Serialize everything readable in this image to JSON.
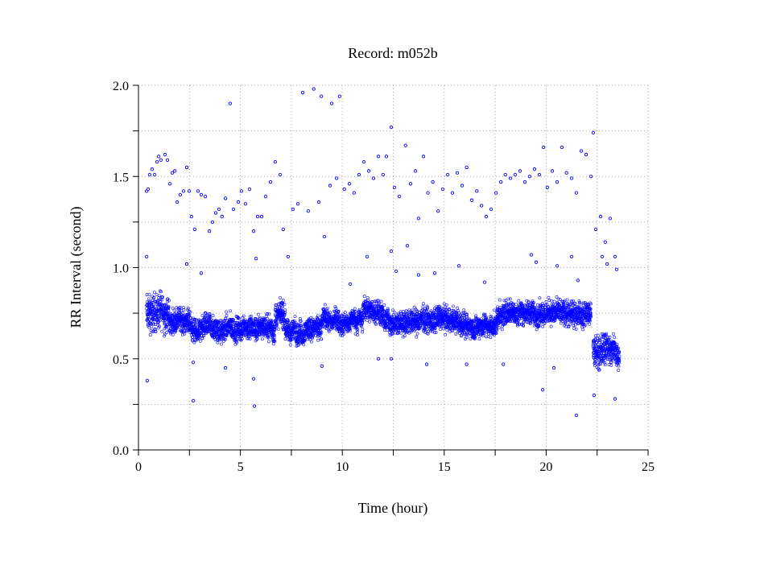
{
  "chart_data": {
    "type": "scatter",
    "title": "Record:  m052b",
    "xlabel": "Time (hour)",
    "ylabel": "RR Interval (second)",
    "xlim": [
      0,
      25
    ],
    "ylim": [
      0,
      2.0
    ],
    "xticks": [
      "0",
      "5",
      "10",
      "15",
      "20",
      "25"
    ],
    "yticks": [
      "0.0",
      "0.5",
      "1.0",
      "1.5",
      "2.0"
    ],
    "grid": true,
    "marker_color": "#0000ff",
    "dense_band": [
      {
        "x_start": 0.4,
        "x_end": 1.5,
        "low": 0.58,
        "high": 0.9,
        "center": 0.75
      },
      {
        "x_start": 1.5,
        "x_end": 2.6,
        "low": 0.6,
        "high": 0.8,
        "center": 0.7
      },
      {
        "x_start": 2.6,
        "x_end": 3.0,
        "low": 0.55,
        "high": 0.75,
        "center": 0.65
      },
      {
        "x_start": 3.0,
        "x_end": 6.7,
        "low": 0.57,
        "high": 0.78,
        "center": 0.67
      },
      {
        "x_start": 6.7,
        "x_end": 7.2,
        "low": 0.62,
        "high": 0.85,
        "center": 0.73
      },
      {
        "x_start": 7.2,
        "x_end": 9.0,
        "low": 0.57,
        "high": 0.77,
        "center": 0.66
      },
      {
        "x_start": 9.0,
        "x_end": 11.0,
        "low": 0.62,
        "high": 0.8,
        "center": 0.71
      },
      {
        "x_start": 11.0,
        "x_end": 12.0,
        "low": 0.67,
        "high": 0.87,
        "center": 0.77
      },
      {
        "x_start": 12.0,
        "x_end": 16.0,
        "low": 0.62,
        "high": 0.83,
        "center": 0.71
      },
      {
        "x_start": 16.0,
        "x_end": 17.6,
        "low": 0.58,
        "high": 0.78,
        "center": 0.68
      },
      {
        "x_start": 17.6,
        "x_end": 22.2,
        "low": 0.65,
        "high": 0.86,
        "center": 0.75
      },
      {
        "x_start": 22.3,
        "x_end": 23.6,
        "low": 0.4,
        "high": 0.68,
        "center": 0.55
      }
    ],
    "outliers": [
      [
        0.4,
        1.42
      ],
      [
        0.47,
        1.43
      ],
      [
        0.55,
        1.51
      ],
      [
        0.67,
        1.54
      ],
      [
        0.79,
        1.51
      ],
      [
        0.91,
        1.58
      ],
      [
        0.99,
        1.61
      ],
      [
        1.1,
        1.59
      ],
      [
        1.3,
        1.62
      ],
      [
        1.42,
        1.59
      ],
      [
        1.54,
        1.46
      ],
      [
        1.66,
        1.52
      ],
      [
        1.78,
        1.53
      ],
      [
        1.9,
        1.36
      ],
      [
        2.05,
        1.4
      ],
      [
        2.21,
        1.42
      ],
      [
        2.37,
        1.55
      ],
      [
        2.49,
        1.42
      ],
      [
        2.6,
        1.28
      ],
      [
        2.76,
        1.21
      ],
      [
        2.92,
        1.42
      ],
      [
        3.08,
        1.4
      ],
      [
        3.28,
        1.39
      ],
      [
        3.48,
        1.2
      ],
      [
        3.63,
        1.25
      ],
      [
        3.79,
        1.3
      ],
      [
        3.95,
        1.32
      ],
      [
        4.1,
        1.28
      ],
      [
        4.27,
        1.38
      ],
      [
        4.5,
        1.9
      ],
      [
        4.66,
        1.32
      ],
      [
        4.9,
        1.36
      ],
      [
        5.05,
        1.42
      ],
      [
        5.25,
        1.35
      ],
      [
        5.45,
        1.43
      ],
      [
        5.65,
        1.2
      ],
      [
        5.85,
        1.28
      ],
      [
        6.04,
        1.28
      ],
      [
        6.24,
        1.39
      ],
      [
        6.48,
        1.47
      ],
      [
        6.71,
        1.58
      ],
      [
        6.95,
        1.51
      ],
      [
        7.1,
        1.21
      ],
      [
        7.34,
        1.06
      ],
      [
        7.58,
        1.32
      ],
      [
        7.82,
        1.35
      ],
      [
        8.06,
        1.96
      ],
      [
        8.33,
        1.31
      ],
      [
        8.6,
        1.98
      ],
      [
        8.85,
        1.36
      ],
      [
        8.97,
        1.94
      ],
      [
        9.12,
        1.17
      ],
      [
        9.4,
        1.45
      ],
      [
        9.48,
        1.9
      ],
      [
        9.72,
        1.49
      ],
      [
        9.87,
        1.94
      ],
      [
        10.1,
        1.43
      ],
      [
        10.35,
        1.46
      ],
      [
        10.58,
        1.41
      ],
      [
        10.82,
        1.51
      ],
      [
        11.06,
        1.58
      ],
      [
        11.3,
        1.53
      ],
      [
        11.53,
        1.49
      ],
      [
        11.77,
        1.61
      ],
      [
        12.0,
        1.51
      ],
      [
        12.16,
        1.61
      ],
      [
        12.4,
        1.77
      ],
      [
        12.56,
        1.44
      ],
      [
        12.8,
        1.39
      ],
      [
        13.1,
        1.67
      ],
      [
        13.35,
        1.46
      ],
      [
        13.59,
        1.53
      ],
      [
        13.74,
        1.27
      ],
      [
        13.98,
        1.61
      ],
      [
        14.2,
        1.41
      ],
      [
        14.44,
        1.47
      ],
      [
        14.7,
        1.31
      ],
      [
        14.93,
        1.43
      ],
      [
        15.17,
        1.51
      ],
      [
        15.4,
        1.41
      ],
      [
        15.64,
        1.52
      ],
      [
        15.88,
        1.45
      ],
      [
        16.1,
        1.55
      ],
      [
        16.35,
        1.37
      ],
      [
        16.6,
        1.42
      ],
      [
        16.83,
        1.34
      ],
      [
        17.06,
        1.28
      ],
      [
        17.3,
        1.32
      ],
      [
        17.54,
        1.41
      ],
      [
        17.78,
        1.47
      ],
      [
        18.0,
        1.51
      ],
      [
        18.25,
        1.49
      ],
      [
        18.48,
        1.51
      ],
      [
        18.72,
        1.53
      ],
      [
        18.96,
        1.47
      ],
      [
        19.19,
        1.5
      ],
      [
        19.43,
        1.54
      ],
      [
        19.67,
        1.51
      ],
      [
        19.87,
        1.66
      ],
      [
        20.06,
        1.44
      ],
      [
        20.3,
        1.53
      ],
      [
        20.54,
        1.47
      ],
      [
        20.77,
        1.66
      ],
      [
        21.0,
        1.52
      ],
      [
        21.25,
        1.49
      ],
      [
        21.48,
        1.41
      ],
      [
        21.72,
        1.64
      ],
      [
        21.96,
        1.62
      ],
      [
        22.2,
        1.5
      ],
      [
        22.31,
        1.74
      ],
      [
        22.43,
        1.21
      ],
      [
        22.67,
        1.28
      ],
      [
        22.9,
        1.14
      ],
      [
        23.14,
        1.27
      ],
      [
        23.38,
        1.06
      ],
      [
        0.4,
        1.06
      ],
      [
        2.37,
        1.02
      ],
      [
        3.08,
        0.97
      ],
      [
        5.77,
        1.05
      ],
      [
        10.39,
        0.91
      ],
      [
        11.22,
        1.06
      ],
      [
        12.4,
        1.09
      ],
      [
        12.64,
        0.98
      ],
      [
        13.19,
        1.12
      ],
      [
        13.74,
        0.96
      ],
      [
        14.53,
        0.97
      ],
      [
        15.72,
        1.01
      ],
      [
        16.98,
        0.92
      ],
      [
        19.27,
        1.07
      ],
      [
        19.51,
        1.03
      ],
      [
        20.54,
        1.01
      ],
      [
        21.25,
        1.06
      ],
      [
        21.56,
        0.93
      ],
      [
        22.75,
        1.06
      ],
      [
        22.99,
        1.02
      ],
      [
        23.46,
        0.99
      ],
      [
        0.43,
        0.38
      ],
      [
        2.69,
        0.27
      ],
      [
        5.69,
        0.24
      ],
      [
        5.65,
        0.39
      ],
      [
        2.69,
        0.48
      ],
      [
        4.27,
        0.45
      ],
      [
        9.0,
        0.46
      ],
      [
        12.4,
        0.5
      ],
      [
        16.1,
        0.47
      ],
      [
        17.9,
        0.47
      ],
      [
        19.83,
        0.33
      ],
      [
        20.38,
        0.45
      ],
      [
        21.48,
        0.19
      ],
      [
        22.35,
        0.3
      ],
      [
        23.38,
        0.28
      ],
      [
        11.77,
        0.5
      ],
      [
        14.14,
        0.47
      ]
    ]
  }
}
